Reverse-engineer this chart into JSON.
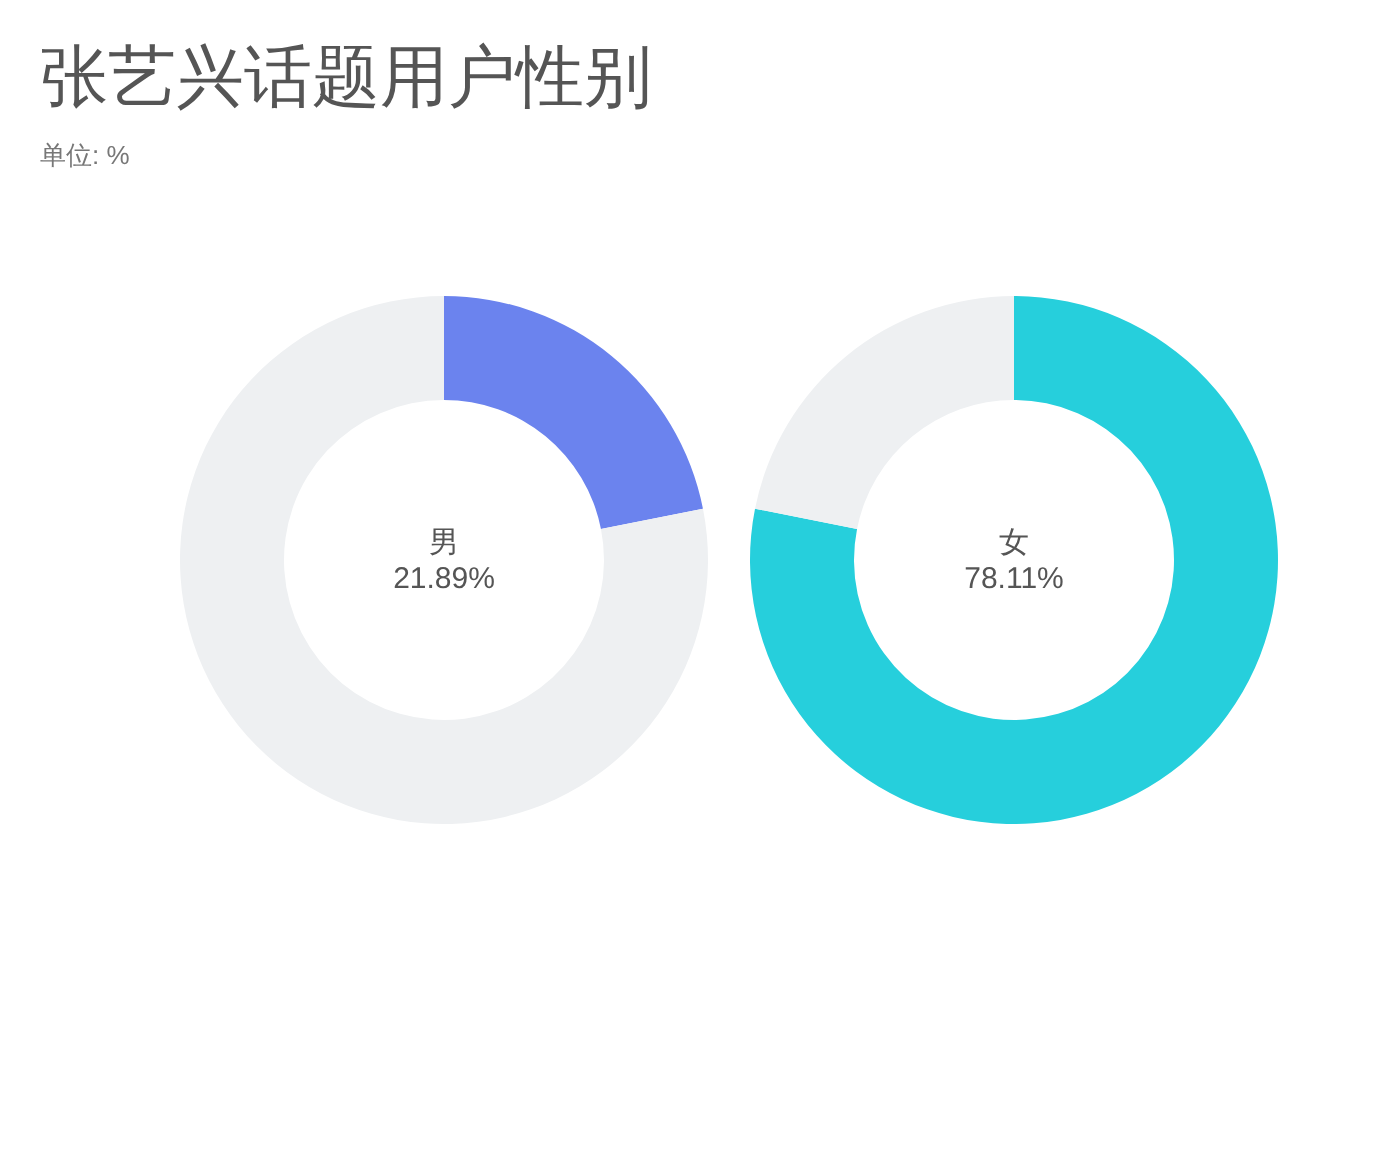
{
  "chart_data": [
    {
      "type": "donut",
      "title": "张艺兴话题用户性别",
      "subtitle": "单位: %",
      "categories": [
        "男",
        null
      ],
      "values": [
        21.89,
        78.11
      ],
      "colors": [
        "#6b83ee",
        "#eef0f2"
      ],
      "value_labels": [
        "21.89%",
        null
      ]
    },
    {
      "type": "donut",
      "categories": [
        "女",
        null
      ],
      "values": [
        78.11,
        21.89
      ],
      "colors": [
        "#26cfdc",
        "#eef0f2"
      ],
      "value_labels": [
        "78.11%",
        null
      ]
    }
  ]
}
